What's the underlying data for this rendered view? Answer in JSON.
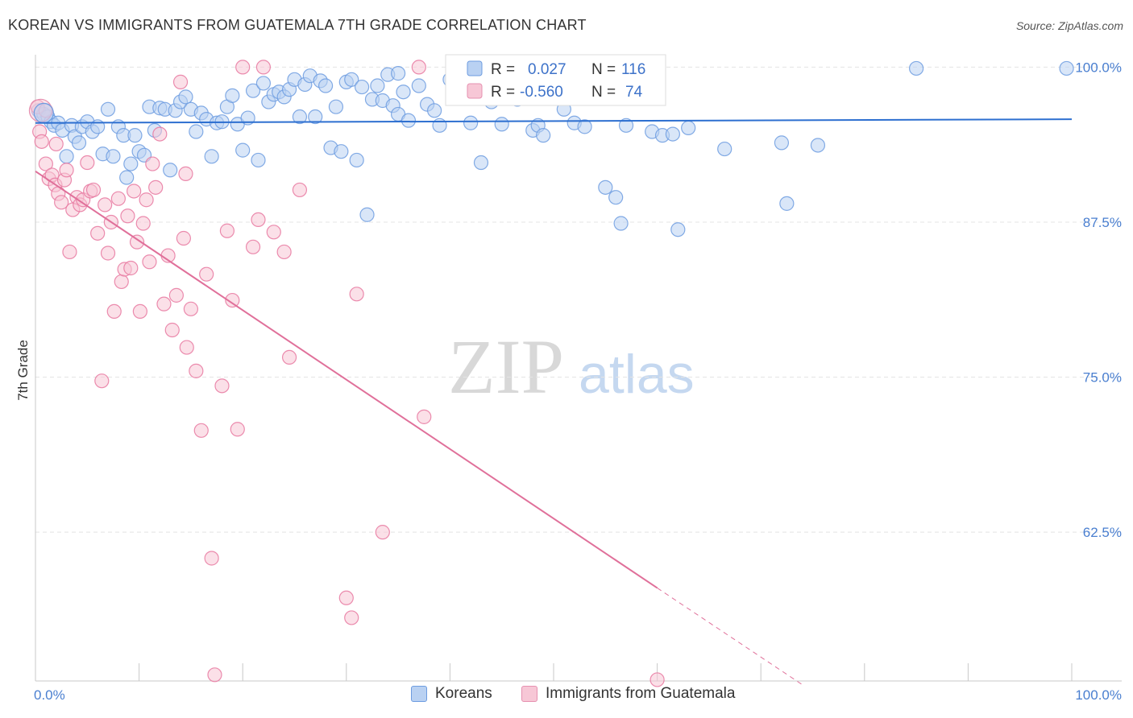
{
  "title": "KOREAN VS IMMIGRANTS FROM GUATEMALA 7TH GRADE CORRELATION CHART",
  "source": "Source: ZipAtlas.com",
  "watermark": {
    "part1": "ZIP",
    "part2": "atlas"
  },
  "legend_box": {
    "rows": [
      {
        "r_label": "R =",
        "r_value": "0.027",
        "n_label": "N =",
        "n_value": "116",
        "color": "#5b8fd6"
      },
      {
        "r_label": "R =",
        "r_value": "-0.560",
        "n_label": "N =",
        "n_value": "74",
        "color": "#e878a0"
      }
    ]
  },
  "bottom_legend": [
    {
      "label": "Koreans",
      "fill": "#b9d1f2",
      "stroke": "#6d9ce0"
    },
    {
      "label": "Immigrants from Guatemala",
      "fill": "#f7c7d6",
      "stroke": "#e690b0"
    }
  ],
  "chart_data": {
    "type": "scatter",
    "title": "KOREAN VS IMMIGRANTS FROM GUATEMALA 7TH GRADE CORRELATION CHART",
    "xlabel": "",
    "ylabel": "7th Grade",
    "xlim": [
      0,
      100
    ],
    "ylim": [
      50.5,
      101
    ],
    "x_tick_labels": [
      "0.0%",
      "100.0%"
    ],
    "y_ticks": [
      {
        "value": 100,
        "label": "100.0%"
      },
      {
        "value": 87.5,
        "label": "87.5%"
      },
      {
        "value": 75,
        "label": "75.0%"
      },
      {
        "value": 62.5,
        "label": "62.5%"
      }
    ],
    "grid": true,
    "series": [
      {
        "name": "Koreans",
        "color": "#6d9ce0",
        "fill": "#b9d1f2",
        "trend": {
          "x0": 0,
          "y0": 95.5,
          "x1": 100,
          "y1": 95.8,
          "dashed_from": null
        },
        "points": [
          [
            0.3,
            96.5
          ],
          [
            0.8,
            96.2
          ],
          [
            1.2,
            96.0
          ],
          [
            1.5,
            95.6
          ],
          [
            1.8,
            95.3
          ],
          [
            2.2,
            95.5
          ],
          [
            2.6,
            94.9
          ],
          [
            3.0,
            92.8
          ],
          [
            3.5,
            95.3
          ],
          [
            3.8,
            94.4
          ],
          [
            4.2,
            93.9
          ],
          [
            4.5,
            95.2
          ],
          [
            5.0,
            95.6
          ],
          [
            5.5,
            94.8
          ],
          [
            6.0,
            95.2
          ],
          [
            6.5,
            93.0
          ],
          [
            7.0,
            96.6
          ],
          [
            7.5,
            92.8
          ],
          [
            8.0,
            95.2
          ],
          [
            8.5,
            94.5
          ],
          [
            8.8,
            91.1
          ],
          [
            9.2,
            92.2
          ],
          [
            9.6,
            94.5
          ],
          [
            10.0,
            93.2
          ],
          [
            10.5,
            92.9
          ],
          [
            11.0,
            96.8
          ],
          [
            11.5,
            94.9
          ],
          [
            12.0,
            96.7
          ],
          [
            12.5,
            96.6
          ],
          [
            13.0,
            91.7
          ],
          [
            13.5,
            96.5
          ],
          [
            14.0,
            97.2
          ],
          [
            14.5,
            97.6
          ],
          [
            15.0,
            96.6
          ],
          [
            15.5,
            94.8
          ],
          [
            16.0,
            96.3
          ],
          [
            16.5,
            95.8
          ],
          [
            17.0,
            92.8
          ],
          [
            17.5,
            95.5
          ],
          [
            18.0,
            95.6
          ],
          [
            18.5,
            96.8
          ],
          [
            19.0,
            97.7
          ],
          [
            19.5,
            95.4
          ],
          [
            20.0,
            93.3
          ],
          [
            20.5,
            95.9
          ],
          [
            21.0,
            98.1
          ],
          [
            21.5,
            92.5
          ],
          [
            22.0,
            98.7
          ],
          [
            22.5,
            97.2
          ],
          [
            23.0,
            97.8
          ],
          [
            23.5,
            98.0
          ],
          [
            24.0,
            97.6
          ],
          [
            24.5,
            98.2
          ],
          [
            25.0,
            99.0
          ],
          [
            25.5,
            96.0
          ],
          [
            26.0,
            98.6
          ],
          [
            26.5,
            99.3
          ],
          [
            27.0,
            96.0
          ],
          [
            27.5,
            98.9
          ],
          [
            28.0,
            98.5
          ],
          [
            28.5,
            93.5
          ],
          [
            29.0,
            96.8
          ],
          [
            29.5,
            93.2
          ],
          [
            30.0,
            98.8
          ],
          [
            30.5,
            99.0
          ],
          [
            31.0,
            92.5
          ],
          [
            31.5,
            98.4
          ],
          [
            32.0,
            88.1
          ],
          [
            32.5,
            97.4
          ],
          [
            33.0,
            98.5
          ],
          [
            33.5,
            97.3
          ],
          [
            34.0,
            99.4
          ],
          [
            34.5,
            96.9
          ],
          [
            35.0,
            96.2
          ],
          [
            35.5,
            98.0
          ],
          [
            36.0,
            95.7
          ],
          [
            37.0,
            98.5
          ],
          [
            37.8,
            97.0
          ],
          [
            38.5,
            96.5
          ],
          [
            39.0,
            95.3
          ],
          [
            40.0,
            99.0
          ],
          [
            41.0,
            97.6
          ],
          [
            42.0,
            95.5
          ],
          [
            43.0,
            92.3
          ],
          [
            44.0,
            97.2
          ],
          [
            45.0,
            95.4
          ],
          [
            46.0,
            99.3
          ],
          [
            47.0,
            98.4
          ],
          [
            48.0,
            94.9
          ],
          [
            48.5,
            95.3
          ],
          [
            49.0,
            94.5
          ],
          [
            50.0,
            99.6
          ],
          [
            51.0,
            96.6
          ],
          [
            52.0,
            95.5
          ],
          [
            53.0,
            95.2
          ],
          [
            54.0,
            99.4
          ],
          [
            55.0,
            90.3
          ],
          [
            56.0,
            89.5
          ],
          [
            56.5,
            87.4
          ],
          [
            57.0,
            95.3
          ],
          [
            58.0,
            98.7
          ],
          [
            59.5,
            94.8
          ],
          [
            60.5,
            94.5
          ],
          [
            61.5,
            94.6
          ],
          [
            62.0,
            86.9
          ],
          [
            63.0,
            95.1
          ],
          [
            66.5,
            93.4
          ],
          [
            72.0,
            93.9
          ],
          [
            72.5,
            89.0
          ],
          [
            75.5,
            93.7
          ],
          [
            85.0,
            99.9
          ],
          [
            99.5,
            99.9
          ],
          [
            35.0,
            99.5
          ],
          [
            41.5,
            99.8
          ],
          [
            53.5,
            99.8
          ],
          [
            46.5,
            97.4
          ]
        ]
      },
      {
        "name": "Immigrants from Guatemala",
        "color": "#e878a0",
        "fill": "#f7c7d6",
        "trend": {
          "x0": 0,
          "y0": 91.6,
          "x1": 60,
          "y1": 58.0,
          "dashed_from": 60,
          "dashed_to_x": 74,
          "dashed_to_y": 50.2
        },
        "points": [
          [
            0.2,
            96.8
          ],
          [
            0.4,
            94.8
          ],
          [
            0.6,
            94.0
          ],
          [
            1.0,
            92.2
          ],
          [
            1.3,
            91.0
          ],
          [
            1.6,
            91.3
          ],
          [
            1.9,
            90.5
          ],
          [
            2.2,
            89.8
          ],
          [
            2.5,
            89.1
          ],
          [
            2.8,
            90.9
          ],
          [
            3.0,
            91.7
          ],
          [
            3.3,
            85.1
          ],
          [
            3.6,
            88.5
          ],
          [
            4.0,
            89.5
          ],
          [
            4.3,
            88.9
          ],
          [
            4.6,
            89.3
          ],
          [
            5.0,
            92.3
          ],
          [
            5.3,
            90.0
          ],
          [
            5.6,
            90.1
          ],
          [
            6.0,
            86.6
          ],
          [
            6.4,
            74.7
          ],
          [
            6.7,
            88.9
          ],
          [
            7.0,
            85.0
          ],
          [
            7.3,
            87.5
          ],
          [
            7.6,
            80.3
          ],
          [
            8.0,
            89.4
          ],
          [
            8.3,
            82.7
          ],
          [
            8.6,
            83.7
          ],
          [
            8.9,
            88.0
          ],
          [
            9.2,
            83.8
          ],
          [
            9.5,
            90.0
          ],
          [
            9.8,
            85.9
          ],
          [
            10.1,
            80.3
          ],
          [
            10.4,
            87.4
          ],
          [
            10.7,
            89.3
          ],
          [
            11.0,
            84.3
          ],
          [
            11.3,
            92.2
          ],
          [
            11.6,
            90.3
          ],
          [
            12.0,
            94.6
          ],
          [
            12.4,
            80.9
          ],
          [
            12.8,
            84.8
          ],
          [
            13.2,
            78.8
          ],
          [
            13.6,
            81.6
          ],
          [
            14.0,
            98.8
          ],
          [
            14.3,
            86.2
          ],
          [
            14.6,
            77.4
          ],
          [
            15.0,
            80.5
          ],
          [
            15.5,
            75.5
          ],
          [
            16.0,
            70.7
          ],
          [
            16.5,
            83.3
          ],
          [
            17.0,
            60.4
          ],
          [
            17.3,
            51.0
          ],
          [
            18.0,
            74.3
          ],
          [
            18.5,
            86.8
          ],
          [
            19.0,
            81.2
          ],
          [
            19.5,
            70.8
          ],
          [
            20.0,
            100.0
          ],
          [
            21.0,
            85.5
          ],
          [
            21.5,
            87.7
          ],
          [
            22.0,
            100.0
          ],
          [
            23.0,
            86.7
          ],
          [
            24.0,
            85.1
          ],
          [
            24.5,
            76.6
          ],
          [
            25.5,
            90.1
          ],
          [
            30.0,
            57.2
          ],
          [
            30.5,
            55.6
          ],
          [
            31.0,
            81.7
          ],
          [
            33.5,
            62.5
          ],
          [
            37.0,
            100.0
          ],
          [
            37.5,
            71.8
          ],
          [
            60.0,
            50.6
          ],
          [
            14.5,
            91.4
          ],
          [
            2.0,
            93.8
          ],
          [
            1.0,
            96.5
          ]
        ]
      }
    ]
  }
}
